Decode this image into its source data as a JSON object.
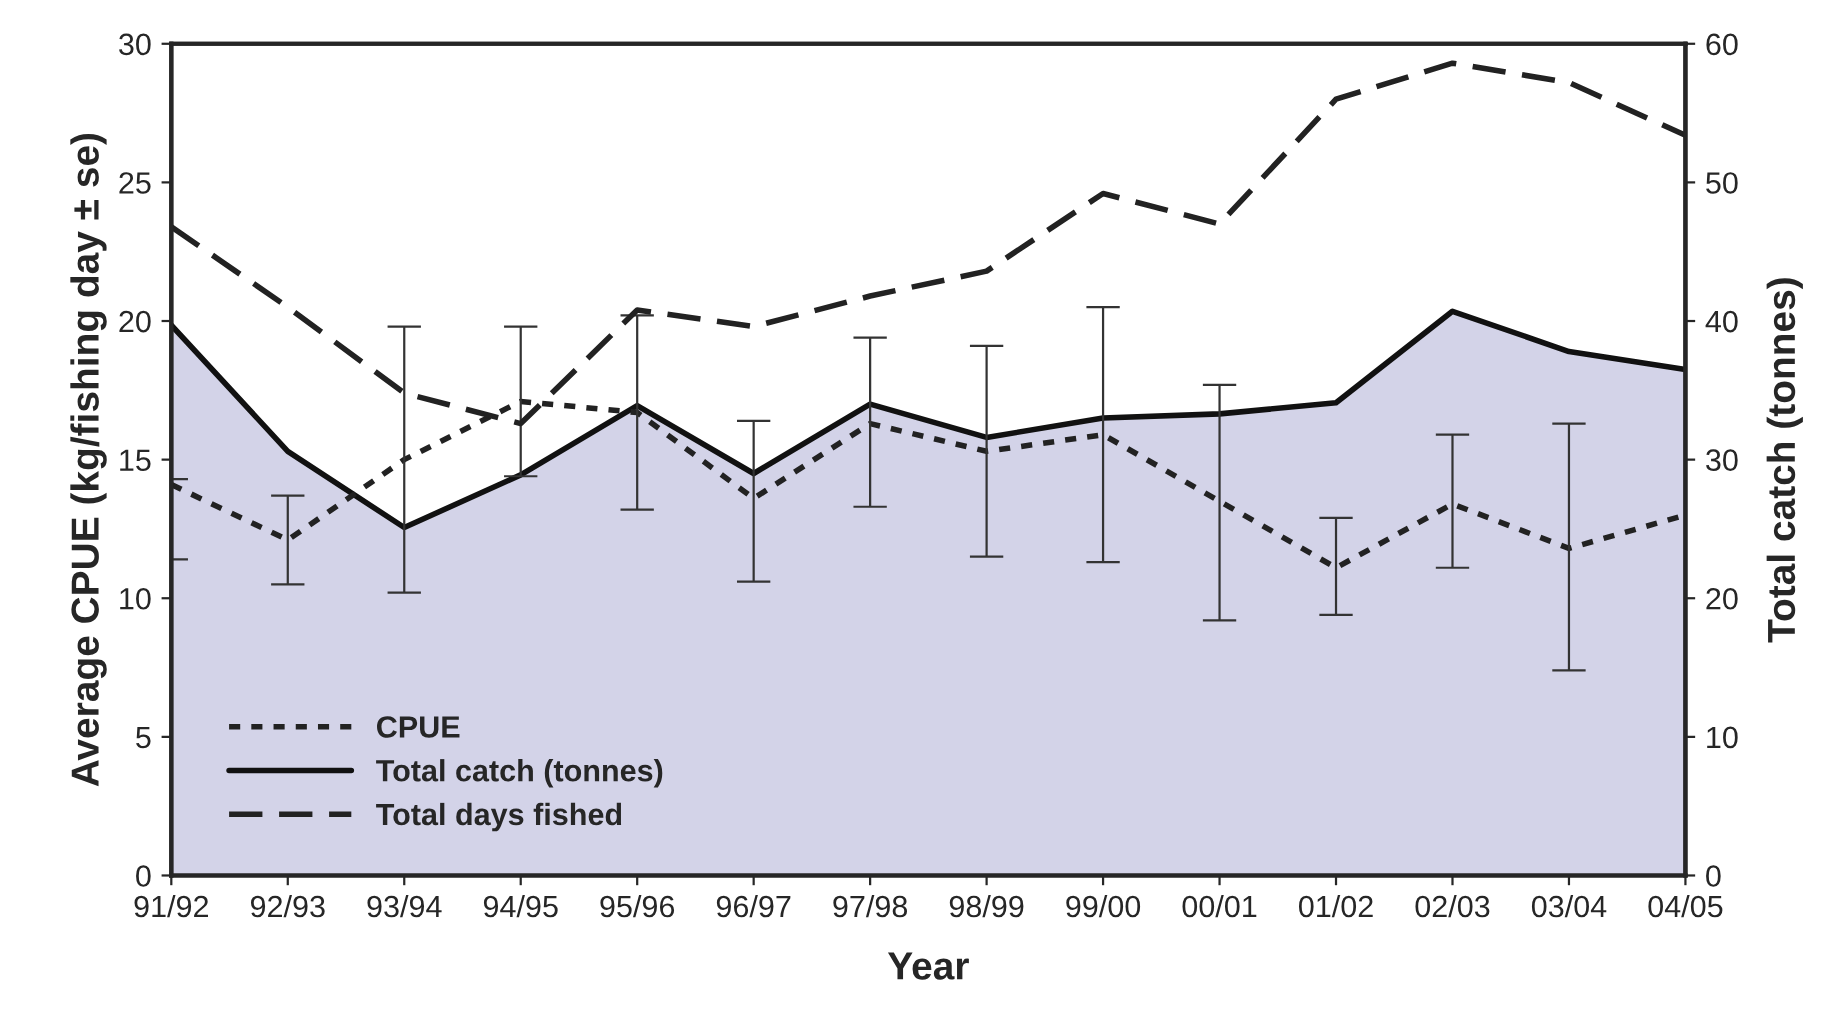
{
  "chart_data": {
    "type": "line",
    "xlabel": "Year",
    "ylabel": "Average CPUE (kg/fishing day ± se)",
    "y2label": "Total catch (tonnes)",
    "categories": [
      "91/92",
      "92/93",
      "93/94",
      "94/95",
      "95/96",
      "96/97",
      "97/98",
      "98/99",
      "99/00",
      "00/01",
      "01/02",
      "02/03",
      "03/04",
      "04/05"
    ],
    "series": [
      {
        "name": "CPUE",
        "line_style": "dotted",
        "color": "#222222",
        "values": [
          14.1,
          12.1,
          15.0,
          17.1,
          16.7,
          13.6,
          16.3,
          15.3,
          15.9,
          13.5,
          11.1,
          13.4,
          11.8,
          13.0
        ],
        "errors": [
          [
            11.4,
            14.3
          ],
          [
            10.5,
            13.7
          ],
          [
            10.2,
            19.8
          ],
          [
            14.4,
            19.8
          ],
          [
            13.2,
            20.2
          ],
          [
            10.6,
            16.4
          ],
          [
            13.3,
            19.4
          ],
          [
            11.5,
            19.1
          ],
          [
            11.3,
            20.5
          ],
          [
            9.2,
            17.7
          ],
          [
            9.4,
            12.9
          ],
          [
            11.1,
            15.9
          ],
          [
            7.4,
            16.3
          ],
          null
        ]
      },
      {
        "name": "Total catch (tonnes)",
        "type": "area",
        "axis": "y2",
        "line_style": "solid",
        "color": "#d3d3e8",
        "values": [
          39.7,
          30.6,
          25.1,
          28.9,
          33.9,
          29.0,
          34.0,
          31.6,
          33.0,
          33.3,
          34.1,
          40.7,
          37.8,
          36.5
        ]
      },
      {
        "name": "Total days fished",
        "line_style": "dashed",
        "color": "#222222",
        "values": [
          23.4,
          20.5,
          17.4,
          16.3,
          20.4,
          19.8,
          20.9,
          21.8,
          24.6,
          23.5,
          28.0,
          29.3,
          28.6,
          26.7
        ]
      }
    ],
    "ylim": [
      0,
      30
    ],
    "yticks": [
      0,
      5,
      10,
      15,
      20,
      25,
      30
    ],
    "y2lim": [
      0,
      60
    ],
    "y2ticks": [
      0,
      10,
      20,
      30,
      40,
      50,
      60
    ],
    "grid": false,
    "legend": "bottom left",
    "marker": "none"
  }
}
